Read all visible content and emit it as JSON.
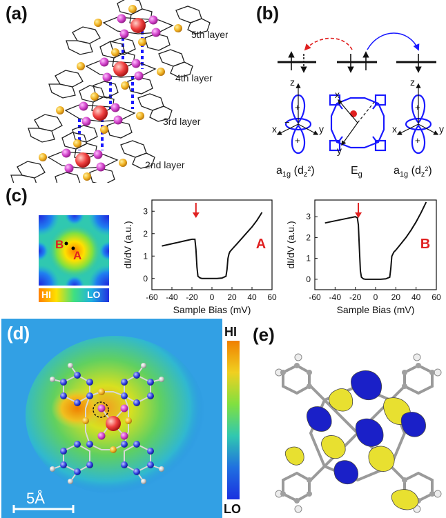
{
  "panels": {
    "a": {
      "label": "(a)",
      "layers": [
        "5th layer",
        "4th layer",
        "3rd layer",
        "2nd layer"
      ]
    },
    "b": {
      "label": "(b)",
      "orbitals": [
        "a1g (dz2)",
        "Eg",
        "a1g (dz2)"
      ],
      "orbital_left": {
        "main": "a",
        "sub": "1g",
        "paren": "(d",
        "paren_sub": "z",
        "paren_sup": "2",
        "close": ")"
      },
      "orbital_mid": {
        "main": "E",
        "sub": "g"
      },
      "axes": {
        "z": "z",
        "x": "x",
        "y": "y",
        "plus": "+",
        "minus": "−"
      }
    },
    "c": {
      "label": "(c)",
      "map_points": [
        "A",
        "B"
      ],
      "colorbar": {
        "hi": "HI",
        "lo": "LO"
      }
    },
    "d": {
      "label": "(d)",
      "scalebar": "5Å",
      "colorbar": {
        "hi": "HI",
        "lo": "LO"
      }
    },
    "e": {
      "label": "(e)"
    }
  },
  "chart_data": [
    {
      "type": "line",
      "name": "A",
      "xlabel": "Sample Bias (mV)",
      "ylabel": "dI/dV (a.u.)",
      "xlim": [
        -60,
        60
      ],
      "ylim": [
        -0.5,
        3.5
      ],
      "xticks": [
        -60,
        -40,
        -20,
        0,
        20,
        40,
        60
      ],
      "yticks": [
        0,
        1,
        2,
        3
      ],
      "arrow_x": -16,
      "series": [
        {
          "name": "A",
          "x": [
            -50,
            -45,
            -40,
            -35,
            -30,
            -25,
            -20,
            -17,
            -16,
            -15,
            -14,
            -12,
            -10,
            -5,
            0,
            5,
            10,
            14,
            15,
            16,
            17,
            18,
            20,
            25,
            30,
            35,
            40,
            45,
            50
          ],
          "y": [
            1.45,
            1.5,
            1.55,
            1.6,
            1.65,
            1.7,
            1.75,
            1.75,
            1.3,
            0.5,
            0.1,
            0.03,
            0.0,
            0.0,
            0.0,
            0.0,
            0.02,
            0.1,
            0.4,
            0.9,
            1.1,
            1.2,
            1.3,
            1.55,
            1.8,
            2.05,
            2.3,
            2.6,
            2.95
          ]
        }
      ]
    },
    {
      "type": "line",
      "name": "B",
      "xlabel": "Sample Bias (mV)",
      "ylabel": "dI/dV (a.u.)",
      "xlim": [
        -60,
        60
      ],
      "ylim": [
        -0.5,
        3.8
      ],
      "xticks": [
        -60,
        -40,
        -20,
        0,
        20,
        40,
        60
      ],
      "yticks": [
        0,
        1,
        2,
        3
      ],
      "arrow_x": -17,
      "series": [
        {
          "name": "B",
          "x": [
            -50,
            -45,
            -40,
            -35,
            -30,
            -25,
            -20,
            -18,
            -17,
            -16,
            -15,
            -14,
            -12,
            -10,
            -5,
            0,
            5,
            10,
            14,
            15,
            16,
            18,
            20,
            25,
            30,
            35,
            40,
            45,
            50
          ],
          "y": [
            2.7,
            2.75,
            2.8,
            2.85,
            2.9,
            2.95,
            3.0,
            2.95,
            2.6,
            1.5,
            0.4,
            0.1,
            0.02,
            0.0,
            0.0,
            0.0,
            0.0,
            0.02,
            0.1,
            0.5,
            1.1,
            1.3,
            1.4,
            1.7,
            2.0,
            2.35,
            2.75,
            3.2,
            3.7
          ]
        }
      ]
    }
  ]
}
